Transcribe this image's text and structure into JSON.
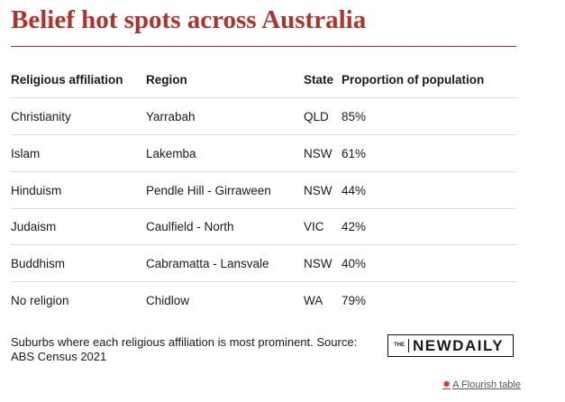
{
  "header": {
    "title": "Belief hot spots across Australia"
  },
  "table": {
    "columns": [
      "Religious affiliation",
      "Region",
      "State",
      "Proportion of population"
    ],
    "rows": [
      [
        "Christianity",
        "Yarrabah",
        "QLD",
        "85%"
      ],
      [
        "Islam",
        "Lakemba",
        "NSW",
        "61%"
      ],
      [
        "Hinduism",
        "Pendle Hill - Girraween",
        "NSW",
        "44%"
      ],
      [
        "Judaism",
        "Caulfield - North",
        "VIC",
        "42%"
      ],
      [
        "Buddhism",
        "Cabramatta - Lansvale",
        "NSW",
        "40%"
      ],
      [
        "No religion",
        "Chidlow",
        "WA",
        "79%"
      ]
    ]
  },
  "footer": {
    "note": "Suburbs where each religious affiliation is most prominent. Source: ABS Census 2021",
    "logo": {
      "prefix": "THE",
      "name": "NEWDAILY"
    },
    "credit": "A Flourish table"
  }
}
